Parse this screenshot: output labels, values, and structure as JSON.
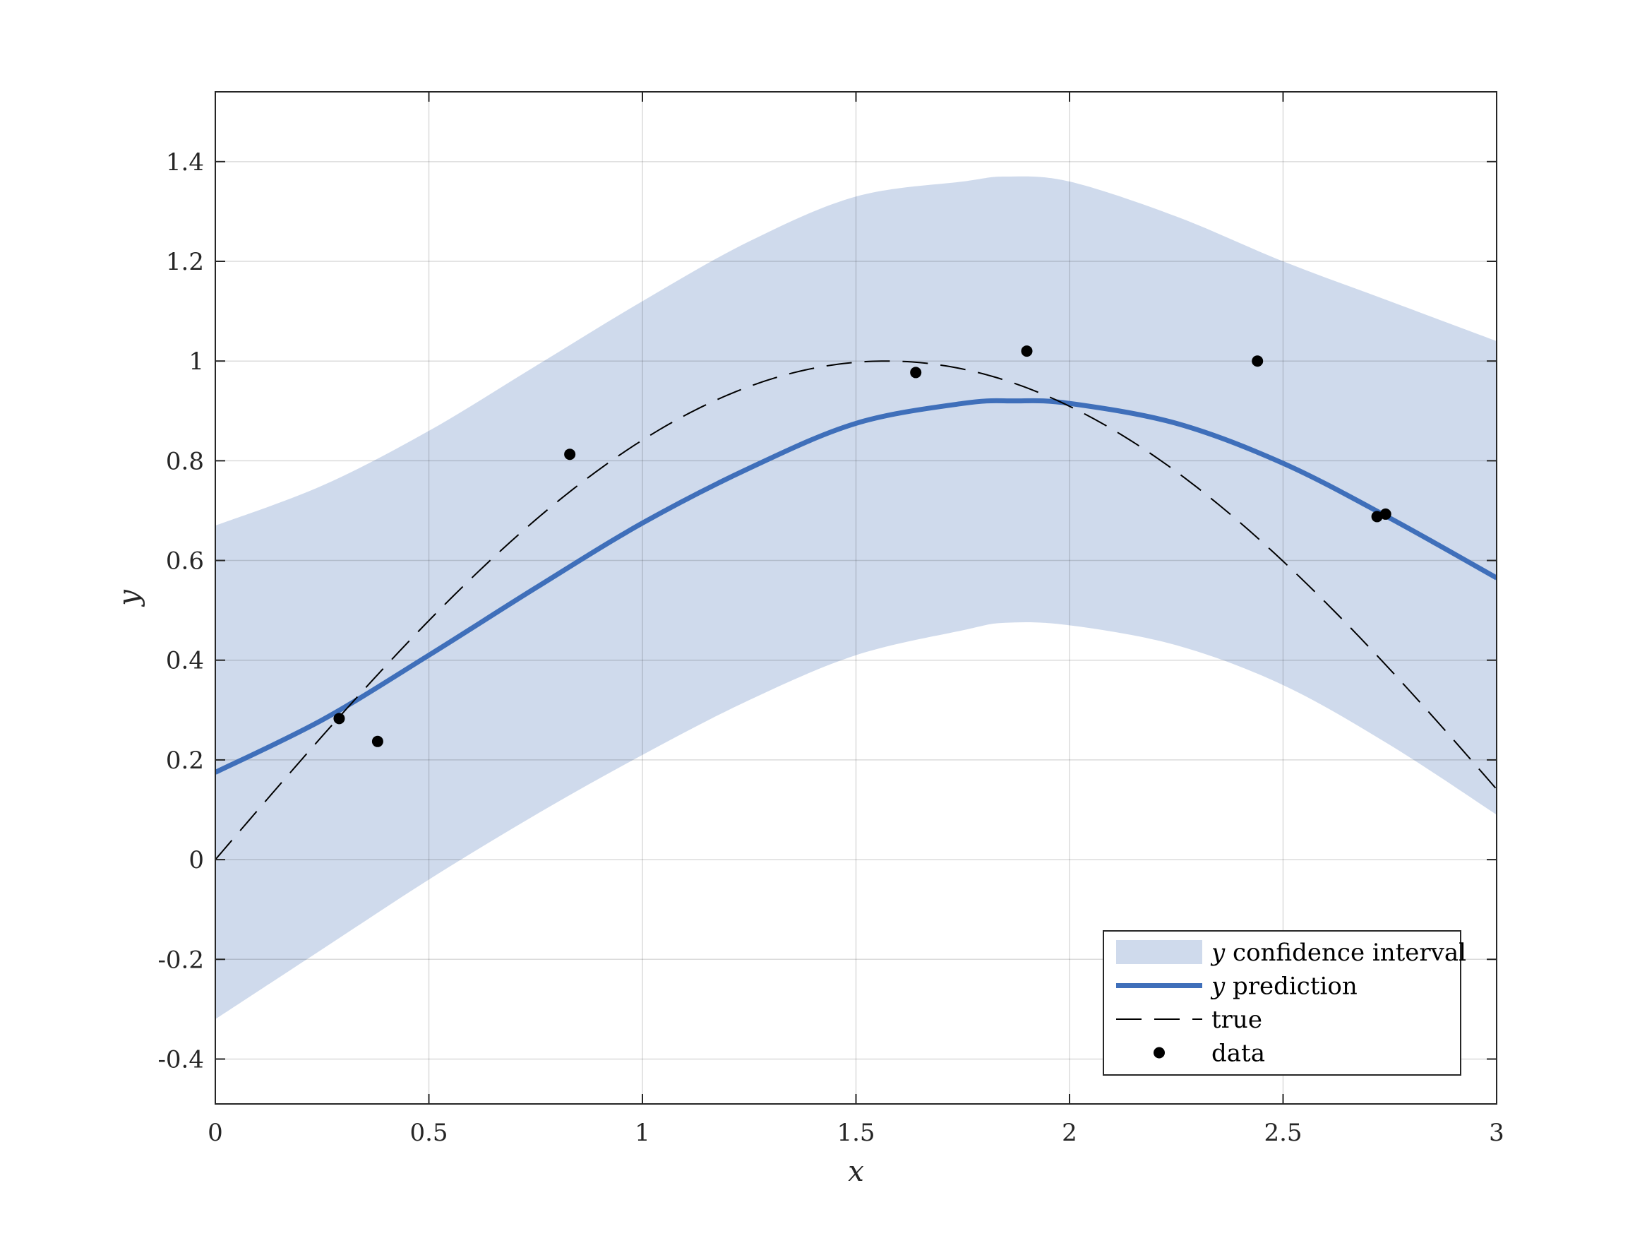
{
  "colors": {
    "band": "#cfdaec",
    "prediction": "#3f6fba",
    "true": "#000000",
    "data": "#000000",
    "grid": "#dcdcdc",
    "axis": "#262626"
  },
  "chart_data": {
    "type": "line",
    "title": "",
    "xlabel": "x",
    "ylabel": "y",
    "xlim": [
      0,
      3
    ],
    "ylim": [
      -0.49,
      1.54
    ],
    "xticks": [
      0,
      0.5,
      1,
      1.5,
      2,
      2.5,
      3
    ],
    "xtick_labels": [
      "0",
      "0.5",
      "1",
      "1.5",
      "2",
      "2.5",
      "3"
    ],
    "yticks": [
      -0.4,
      -0.2,
      0,
      0.2,
      0.4,
      0.6,
      0.8,
      1,
      1.2,
      1.4
    ],
    "ytick_labels": [
      "-0.4",
      "-0.2",
      "0",
      "0.2",
      "0.4",
      "0.6",
      "0.8",
      "1",
      "1.2",
      "1.4"
    ],
    "grid": true,
    "legend_position": "bottom-right",
    "series": [
      {
        "name": "y confidence interval",
        "kind": "band",
        "x": [
          0,
          0.25,
          0.5,
          0.75,
          1.0,
          1.25,
          1.5,
          1.75,
          1.85,
          2.0,
          2.25,
          2.5,
          2.75,
          3.0
        ],
        "lower": [
          -0.32,
          -0.18,
          -0.04,
          0.09,
          0.21,
          0.32,
          0.41,
          0.46,
          0.475,
          0.47,
          0.43,
          0.35,
          0.23,
          0.09
        ],
        "upper": [
          0.67,
          0.75,
          0.86,
          0.99,
          1.12,
          1.24,
          1.33,
          1.36,
          1.37,
          1.36,
          1.29,
          1.2,
          1.12,
          1.04
        ]
      },
      {
        "name": "y prediction",
        "kind": "line",
        "x": [
          0,
          0.25,
          0.5,
          0.75,
          1.0,
          1.25,
          1.5,
          1.75,
          1.87,
          2.0,
          2.25,
          2.5,
          2.75,
          3.0
        ],
        "y": [
          0.175,
          0.28,
          0.41,
          0.545,
          0.675,
          0.785,
          0.875,
          0.915,
          0.92,
          0.915,
          0.875,
          0.795,
          0.685,
          0.565
        ]
      },
      {
        "name": "true",
        "kind": "function",
        "function": "sin",
        "x_range": [
          0,
          3
        ]
      },
      {
        "name": "data",
        "kind": "scatter",
        "x": [
          0.29,
          0.38,
          0.83,
          1.64,
          1.9,
          2.44,
          2.72,
          2.74
        ],
        "y": [
          0.283,
          0.237,
          0.813,
          0.977,
          1.02,
          1.0,
          0.688,
          0.693
        ]
      }
    ]
  }
}
